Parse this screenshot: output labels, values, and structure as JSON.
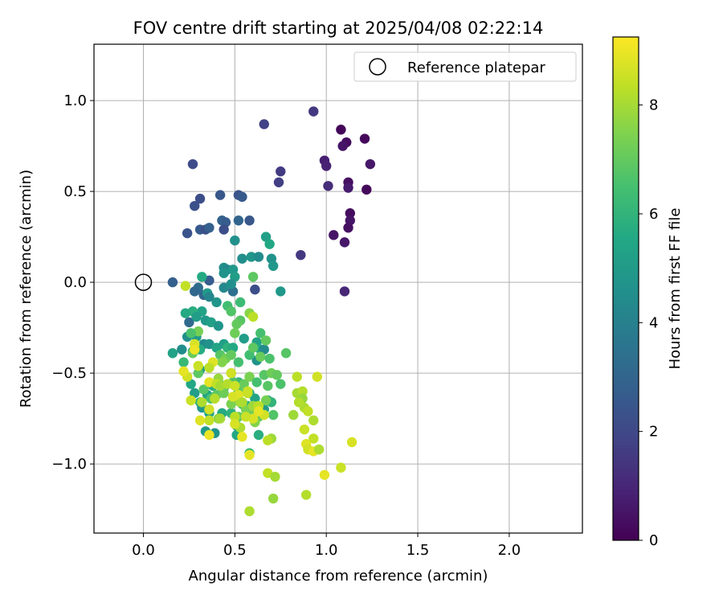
{
  "chart_data": {
    "type": "scatter",
    "title": "FOV centre drift starting at 2025/04/08 02:22:14",
    "xlabel": "Angular distance from reference (arcmin)",
    "ylabel": "Rotation from reference (arcmin)",
    "xlim": [
      -0.27,
      2.4
    ],
    "ylim": [
      -1.38,
      1.31
    ],
    "x_ticks": [
      0.0,
      0.5,
      1.0,
      1.5,
      2.0
    ],
    "x_tick_labels": [
      "0.0",
      "0.5",
      "1.0",
      "1.5",
      "2.0"
    ],
    "y_ticks": [
      -1.0,
      -0.5,
      0.0,
      0.5,
      1.0
    ],
    "y_tick_labels": [
      "−1.0",
      "−0.5",
      "0.0",
      "0.5",
      "1.0"
    ],
    "grid": true,
    "legend": {
      "placement": "upper-right",
      "entries": [
        "Reference platepar"
      ]
    },
    "reference_point": {
      "x": 0.0,
      "y": 0.0,
      "label": "Reference platepar"
    },
    "colorbar": {
      "label": "Hours from first FF file",
      "colormap": "viridis",
      "range": [
        0,
        9.25
      ],
      "ticks": [
        0,
        2,
        4,
        6,
        8
      ]
    },
    "points": [
      [
        1.08,
        0.84,
        0.1
      ],
      [
        1.21,
        0.79,
        0.2
      ],
      [
        1.11,
        0.77,
        0.3
      ],
      [
        1.09,
        0.75,
        0.5
      ],
      [
        1.24,
        0.65,
        0.6
      ],
      [
        1.22,
        0.51,
        0.2
      ],
      [
        1.12,
        0.55,
        0.4
      ],
      [
        1.12,
        0.52,
        0.7
      ],
      [
        1.13,
        0.38,
        0.3
      ],
      [
        1.13,
        0.34,
        0.5
      ],
      [
        1.12,
        0.3,
        0.4
      ],
      [
        1.1,
        0.22,
        0.6
      ],
      [
        1.04,
        0.26,
        0.5
      ],
      [
        0.99,
        0.67,
        0.8
      ],
      [
        1.0,
        0.64,
        0.9
      ],
      [
        1.01,
        0.53,
        1.2
      ],
      [
        0.93,
        0.94,
        1.5
      ],
      [
        0.75,
        0.61,
        1.6
      ],
      [
        0.74,
        0.55,
        1.7
      ],
      [
        0.86,
        0.15,
        1.5
      ],
      [
        1.1,
        -0.05,
        1.0
      ],
      [
        0.66,
        0.87,
        1.8
      ],
      [
        0.27,
        0.65,
        2.1
      ],
      [
        0.31,
        0.46,
        2.2
      ],
      [
        0.28,
        0.42,
        2.3
      ],
      [
        0.42,
        0.48,
        2.5
      ],
      [
        0.52,
        0.48,
        2.4
      ],
      [
        0.54,
        0.47,
        2.6
      ],
      [
        0.24,
        0.27,
        2.4
      ],
      [
        0.31,
        0.29,
        2.6
      ],
      [
        0.34,
        0.29,
        2.3
      ],
      [
        0.36,
        0.3,
        2.8
      ],
      [
        0.43,
        0.34,
        2.9
      ],
      [
        0.45,
        0.33,
        2.7
      ],
      [
        0.44,
        0.29,
        2.2
      ],
      [
        0.52,
        0.34,
        3.0
      ],
      [
        0.58,
        0.34,
        2.5
      ],
      [
        0.16,
        0.0,
        2.8
      ],
      [
        0.33,
        -0.07,
        3.0
      ],
      [
        0.36,
        0.01,
        2.7
      ],
      [
        0.3,
        -0.03,
        3.3
      ],
      [
        0.28,
        -0.05,
        3.1
      ],
      [
        0.49,
        -0.05,
        3.4
      ],
      [
        0.25,
        -0.22,
        3.2
      ],
      [
        0.61,
        -0.04,
        2.2
      ],
      [
        0.5,
        0.23,
        4.6
      ],
      [
        0.54,
        0.13,
        4.5
      ],
      [
        0.59,
        0.14,
        4.8
      ],
      [
        0.63,
        0.14,
        4.4
      ],
      [
        0.67,
        0.25,
        5.2
      ],
      [
        0.69,
        0.21,
        5.5
      ],
      [
        0.7,
        0.13,
        4.7
      ],
      [
        0.71,
        0.09,
        4.9
      ],
      [
        0.44,
        0.08,
        4.5
      ],
      [
        0.46,
        0.07,
        4.2
      ],
      [
        0.49,
        0.07,
        4.9
      ],
      [
        0.5,
        0.03,
        5.1
      ],
      [
        0.44,
        0.05,
        4.7
      ],
      [
        0.44,
        -0.03,
        4.3
      ],
      [
        0.48,
        -0.01,
        4.6
      ],
      [
        0.4,
        -0.11,
        4.8
      ],
      [
        0.32,
        -0.16,
        5.3
      ],
      [
        0.27,
        -0.16,
        5.8
      ],
      [
        0.23,
        -0.17,
        5.6
      ],
      [
        0.29,
        -0.19,
        5.1
      ],
      [
        0.34,
        -0.21,
        4.9
      ],
      [
        0.37,
        -0.22,
        5.2
      ],
      [
        0.41,
        -0.24,
        4.8
      ],
      [
        0.33,
        -0.34,
        4.4
      ],
      [
        0.36,
        -0.34,
        4.7
      ],
      [
        0.24,
        -0.3,
        4.6
      ],
      [
        0.29,
        -0.3,
        5.0
      ],
      [
        0.16,
        -0.39,
        5.3
      ],
      [
        0.21,
        -0.37,
        4.5
      ],
      [
        0.27,
        -0.38,
        5.5
      ],
      [
        0.31,
        -0.37,
        5.7
      ],
      [
        0.4,
        -0.36,
        5.4
      ],
      [
        0.44,
        -0.34,
        5.2
      ],
      [
        0.46,
        -0.36,
        5.9
      ],
      [
        0.49,
        -0.36,
        5.6
      ],
      [
        0.55,
        -0.31,
        5.1
      ],
      [
        0.62,
        -0.33,
        5.3
      ],
      [
        0.64,
        -0.37,
        5.6
      ],
      [
        0.62,
        -0.43,
        4.7
      ],
      [
        0.66,
        -0.37,
        4.4
      ],
      [
        0.75,
        -0.05,
        4.9
      ],
      [
        0.32,
        0.03,
        5.6
      ],
      [
        0.35,
        -0.06,
        5.0
      ],
      [
        0.36,
        -0.08,
        4.2
      ],
      [
        0.31,
        -0.48,
        5.2
      ],
      [
        0.26,
        -0.56,
        5.5
      ],
      [
        0.28,
        -0.61,
        5.1
      ],
      [
        0.31,
        -0.66,
        5.8
      ],
      [
        0.32,
        -0.69,
        4.9
      ],
      [
        0.35,
        -0.62,
        5.4
      ],
      [
        0.38,
        -0.57,
        5.7
      ],
      [
        0.41,
        -0.55,
        5.6
      ],
      [
        0.44,
        -0.58,
        5.3
      ],
      [
        0.36,
        -0.72,
        5.3
      ],
      [
        0.34,
        -0.82,
        5.0
      ],
      [
        0.39,
        -0.83,
        4.8
      ],
      [
        0.43,
        -0.72,
        5.6
      ],
      [
        0.48,
        -0.72,
        5.9
      ],
      [
        0.51,
        -0.79,
        5.2
      ],
      [
        0.51,
        -0.84,
        5.5
      ],
      [
        0.54,
        -0.67,
        6.1
      ],
      [
        0.57,
        -0.68,
        6.0
      ],
      [
        0.58,
        -0.61,
        5.7
      ],
      [
        0.61,
        -0.64,
        5.4
      ],
      [
        0.63,
        -0.84,
        5.8
      ],
      [
        0.66,
        -0.7,
        5.1
      ],
      [
        0.68,
        -0.65,
        5.5
      ],
      [
        0.7,
        -0.66,
        6.0
      ],
      [
        0.58,
        -0.94,
        6.2
      ],
      [
        0.5,
        -0.65,
        5.8
      ],
      [
        0.52,
        -0.55,
        6.1
      ],
      [
        0.46,
        -0.13,
        6.4
      ],
      [
        0.48,
        -0.16,
        6.7
      ],
      [
        0.53,
        -0.11,
        6.3
      ],
      [
        0.53,
        -0.21,
        6.8
      ],
      [
        0.51,
        -0.23,
        7.0
      ],
      [
        0.5,
        -0.28,
        7.2
      ],
      [
        0.6,
        0.03,
        6.9
      ],
      [
        0.64,
        -0.28,
        6.5
      ],
      [
        0.67,
        -0.32,
        7.0
      ],
      [
        0.58,
        -0.4,
        6.4
      ],
      [
        0.6,
        -0.36,
        6.9
      ],
      [
        0.64,
        -0.41,
        7.1
      ],
      [
        0.69,
        -0.42,
        6.6
      ],
      [
        0.78,
        -0.39,
        6.8
      ],
      [
        0.42,
        -0.4,
        6.8
      ],
      [
        0.45,
        -0.42,
        7.3
      ],
      [
        0.48,
        -0.4,
        7.0
      ],
      [
        0.52,
        -0.44,
        6.5
      ],
      [
        0.3,
        -0.27,
        7.3
      ],
      [
        0.26,
        -0.28,
        6.6
      ],
      [
        0.27,
        -0.39,
        7.1
      ],
      [
        0.3,
        -0.5,
        6.9
      ],
      [
        0.22,
        -0.44,
        6.2
      ],
      [
        0.33,
        -0.59,
        6.8
      ],
      [
        0.37,
        -0.64,
        6.6
      ],
      [
        0.4,
        -0.62,
        6.9
      ],
      [
        0.44,
        -0.61,
        7.2
      ],
      [
        0.48,
        -0.5,
        6.4
      ],
      [
        0.49,
        -0.55,
        6.7
      ],
      [
        0.52,
        -0.6,
        6.9
      ],
      [
        0.55,
        -0.56,
        7.1
      ],
      [
        0.58,
        -0.52,
        7.4
      ],
      [
        0.66,
        -0.51,
        6.8
      ],
      [
        0.7,
        -0.5,
        7.2
      ],
      [
        0.73,
        -0.51,
        7.0
      ],
      [
        0.62,
        -0.55,
        6.5
      ],
      [
        0.68,
        -0.57,
        6.8
      ],
      [
        0.75,
        -0.56,
        6.6
      ],
      [
        0.48,
        -0.67,
        7.4
      ],
      [
        0.52,
        -0.74,
        7.1
      ],
      [
        0.56,
        -0.7,
        7.4
      ],
      [
        0.6,
        -0.73,
        7.2
      ],
      [
        0.63,
        -0.74,
        6.9
      ],
      [
        0.67,
        -0.65,
        7.3
      ],
      [
        0.71,
        -0.73,
        6.7
      ],
      [
        0.61,
        -0.77,
        7.5
      ],
      [
        0.41,
        -0.75,
        7.6
      ],
      [
        0.41,
        -0.53,
        7.8
      ],
      [
        0.43,
        -0.44,
        7.5
      ],
      [
        0.53,
        -0.66,
        8.0
      ],
      [
        0.58,
        -0.17,
        7.6
      ],
      [
        0.6,
        -0.19,
        8.3
      ],
      [
        0.23,
        -0.02,
        8.4
      ],
      [
        0.24,
        -0.52,
        8.6
      ],
      [
        0.22,
        -0.49,
        8.9
      ],
      [
        0.28,
        -0.34,
        8.7
      ],
      [
        0.28,
        -0.37,
        9.0
      ],
      [
        0.3,
        -0.46,
        8.5
      ],
      [
        0.38,
        -0.44,
        8.8
      ],
      [
        0.36,
        -0.47,
        8.3
      ],
      [
        0.36,
        -0.55,
        8.9
      ],
      [
        0.4,
        -0.56,
        8.4
      ],
      [
        0.42,
        -0.57,
        8.0
      ],
      [
        0.46,
        -0.56,
        8.2
      ],
      [
        0.48,
        -0.5,
        8.6
      ],
      [
        0.5,
        -0.57,
        8.5
      ],
      [
        0.52,
        -0.62,
        8.8
      ],
      [
        0.54,
        -0.66,
        8.1
      ],
      [
        0.57,
        -0.61,
        8.4
      ],
      [
        0.6,
        -0.68,
        7.9
      ],
      [
        0.63,
        -0.68,
        8.3
      ],
      [
        0.66,
        -0.73,
        8.6
      ],
      [
        0.6,
        -0.75,
        8.7
      ],
      [
        0.63,
        -0.71,
        8.9
      ],
      [
        0.56,
        -0.74,
        8.5
      ],
      [
        0.53,
        -0.8,
        8.1
      ],
      [
        0.5,
        -0.74,
        8.3
      ],
      [
        0.5,
        -0.78,
        8.7
      ],
      [
        0.54,
        -0.85,
        8.9
      ],
      [
        0.36,
        -0.84,
        9.0
      ],
      [
        0.36,
        -0.76,
        8.4
      ],
      [
        0.36,
        -0.7,
        8.6
      ],
      [
        0.31,
        -0.76,
        8.8
      ],
      [
        0.26,
        -0.65,
        8.5
      ],
      [
        0.32,
        -0.66,
        8.1
      ],
      [
        0.39,
        -0.64,
        8.2
      ],
      [
        0.42,
        -0.75,
        8.0
      ],
      [
        0.49,
        -0.63,
        8.7
      ],
      [
        0.57,
        -0.6,
        8.5
      ],
      [
        0.58,
        -0.95,
        8.9
      ],
      [
        0.58,
        -1.26,
        8.1
      ],
      [
        0.7,
        -0.86,
        7.9
      ],
      [
        0.68,
        -0.87,
        8.3
      ],
      [
        0.68,
        -1.05,
        8.4
      ],
      [
        0.72,
        -1.07,
        8.0
      ],
      [
        0.71,
        -1.19,
        7.8
      ],
      [
        0.82,
        -0.73,
        7.9
      ],
      [
        0.84,
        -0.61,
        8.0
      ],
      [
        0.84,
        -0.52,
        8.3
      ],
      [
        0.87,
        -0.6,
        8.2
      ],
      [
        0.87,
        -0.64,
        7.8
      ],
      [
        0.88,
        -0.69,
        8.1
      ],
      [
        0.9,
        -0.71,
        8.4
      ],
      [
        0.88,
        -0.81,
        8.5
      ],
      [
        0.89,
        -1.17,
        8.2
      ],
      [
        0.93,
        -0.76,
        8.1
      ],
      [
        0.93,
        -0.86,
        8.4
      ],
      [
        0.95,
        -0.52,
        8.6
      ],
      [
        0.89,
        -0.89,
        8.8
      ],
      [
        0.9,
        -0.92,
        8.6
      ],
      [
        0.93,
        -0.93,
        8.9
      ],
      [
        0.96,
        -0.92,
        8.3
      ],
      [
        0.99,
        -1.06,
        8.9
      ],
      [
        1.08,
        -1.02,
        8.5
      ],
      [
        1.14,
        -0.88,
        8.7
      ],
      [
        0.96,
        -0.92,
        8.1
      ],
      [
        0.85,
        -0.66,
        8.2
      ]
    ]
  }
}
